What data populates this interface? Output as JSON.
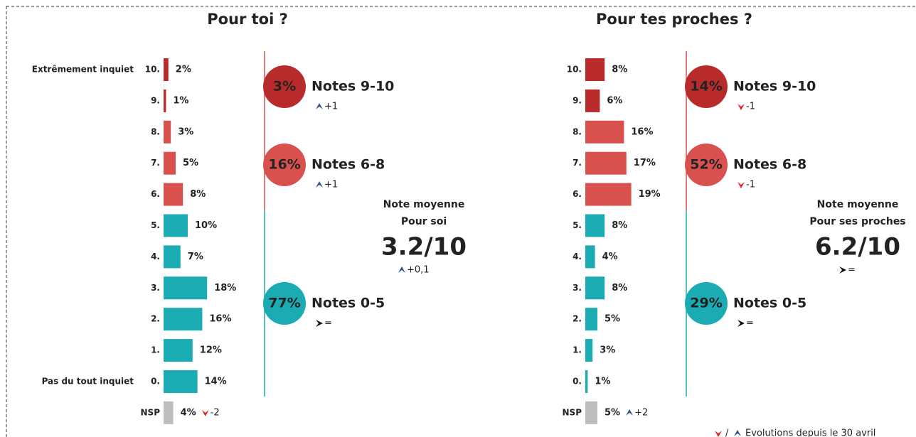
{
  "chart_data": [
    {
      "type": "bar",
      "title": "Pour toi ?",
      "categories": [
        "10.",
        "9.",
        "8.",
        "7.",
        "6.",
        "5.",
        "4.",
        "3.",
        "2.",
        "1.",
        "0.",
        "NSP"
      ],
      "values": [
        2,
        1,
        3,
        5,
        8,
        10,
        7,
        18,
        16,
        12,
        14,
        4
      ],
      "value_labels": [
        "2%",
        "1%",
        "3%",
        "5%",
        "8%",
        "10%",
        "7%",
        "18%",
        "16%",
        "12%",
        "14%",
        "4%"
      ],
      "colors": [
        "#b92b2b",
        "#b92b2b",
        "#d9514f",
        "#d9514f",
        "#d9514f",
        "#1aabb3",
        "#1aabb3",
        "#1aabb3",
        "#1aabb3",
        "#1aabb3",
        "#1aabb3",
        "#bdbdbd"
      ],
      "extreme_labels": [
        "Extrêmement inquiet",
        "Pas du tout inquiet"
      ],
      "nsp_evolution": {
        "label": "-2",
        "trend": "down"
      },
      "groups": [
        {
          "label": "3%",
          "name": "Notes 9-10",
          "color": "#b92b2b",
          "evolution": "+1",
          "trend": "up"
        },
        {
          "label": "16%",
          "name": "Notes 6-8",
          "color": "#d9514f",
          "evolution": "+1",
          "trend": "up"
        },
        {
          "label": "77%",
          "name": "Notes 0-5",
          "color": "#1aabb3",
          "evolution": "=",
          "trend": "flat"
        }
      ],
      "average": {
        "caption": "Note moyenne",
        "target": "Pour soi",
        "label": "3.2/10",
        "color": "#1b5e6a",
        "evolution": "+0,1",
        "trend": "up"
      }
    },
    {
      "type": "bar",
      "title": "Pour tes proches ?",
      "categories": [
        "10.",
        "9.",
        "8.",
        "7.",
        "6.",
        "5.",
        "4.",
        "3.",
        "2.",
        "1.",
        "0.",
        "NSP"
      ],
      "values": [
        8,
        6,
        16,
        17,
        19,
        8,
        4,
        8,
        5,
        3,
        1,
        5
      ],
      "value_labels": [
        "8%",
        "6%",
        "16%",
        "17%",
        "19%",
        "8%",
        "4%",
        "8%",
        "5%",
        "3%",
        "1%",
        "5%"
      ],
      "colors": [
        "#b92b2b",
        "#b92b2b",
        "#d9514f",
        "#d9514f",
        "#d9514f",
        "#1aabb3",
        "#1aabb3",
        "#1aabb3",
        "#1aabb3",
        "#1aabb3",
        "#1aabb3",
        "#bdbdbd"
      ],
      "nsp_evolution": {
        "label": "+2",
        "trend": "up"
      },
      "groups": [
        {
          "label": "14%",
          "name": "Notes 9-10",
          "color": "#b92b2b",
          "evolution": "-1",
          "trend": "down"
        },
        {
          "label": "52%",
          "name": "Notes 6-8",
          "color": "#d9514f",
          "evolution": "-1",
          "trend": "down"
        },
        {
          "label": "29%",
          "name": "Notes 0-5",
          "color": "#1aabb3",
          "evolution": "=",
          "trend": "flat"
        }
      ],
      "average": {
        "caption": "Note moyenne",
        "target": "Pour ses proches",
        "label": "6.2/10",
        "color": "#d9514f",
        "evolution": "=",
        "trend": "flat"
      }
    }
  ],
  "legend": {
    "separator": "/",
    "text": "Evolutions depuis le 30 avril"
  }
}
